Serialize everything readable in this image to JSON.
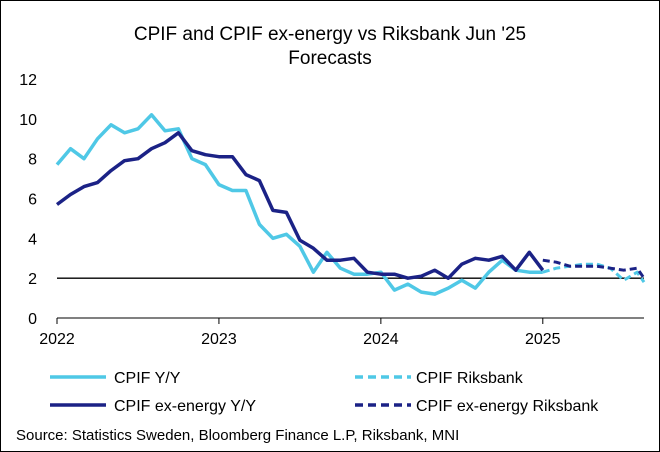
{
  "chart_data": {
    "type": "line",
    "title_line1": "CPIF and CPIF ex-energy vs Riksbank  Jun '25",
    "title_line2": "Forecasts",
    "xlabel": "",
    "ylabel": "",
    "ylim": [
      0,
      12
    ],
    "yticks": [
      "0",
      "2",
      "4",
      "6",
      "8",
      "10",
      "12"
    ],
    "xlim": [
      2022.0,
      2025.625
    ],
    "xticks": [
      {
        "label": "2022",
        "value": 2022.0
      },
      {
        "label": "2023",
        "value": 2023.0
      },
      {
        "label": "2024",
        "value": 2024.0
      },
      {
        "label": "2025",
        "value": 2025.0
      }
    ],
    "reference_line": 2,
    "series": [
      {
        "name": "CPIF Y/Y",
        "color": "#4FC8E6",
        "dash": "solid",
        "x": [
          2022.0,
          2022.0833,
          2022.1667,
          2022.25,
          2022.3333,
          2022.4167,
          2022.5,
          2022.5833,
          2022.6667,
          2022.75,
          2022.8333,
          2022.9167,
          2023.0,
          2023.0833,
          2023.1667,
          2023.25,
          2023.3333,
          2023.4167,
          2023.5,
          2023.5833,
          2023.6667,
          2023.75,
          2023.8333,
          2023.9167,
          2024.0,
          2024.0833,
          2024.1667,
          2024.25,
          2024.3333,
          2024.4167,
          2024.5,
          2024.5833,
          2024.6667,
          2024.75,
          2024.8333,
          2024.9167,
          2025.0
        ],
        "values": [
          7.7,
          8.5,
          8.0,
          9.0,
          9.7,
          9.3,
          9.5,
          10.2,
          9.4,
          9.5,
          8.0,
          7.7,
          6.7,
          6.4,
          6.4,
          4.7,
          4.0,
          4.2,
          3.6,
          2.3,
          3.3,
          2.5,
          2.2,
          2.2,
          2.3,
          1.4,
          1.7,
          1.3,
          1.2,
          1.5,
          1.9,
          1.5,
          2.3,
          2.9,
          2.4,
          2.3,
          2.3
        ]
      },
      {
        "name": "CPIF ex-energy Y/Y",
        "color": "#1B2286",
        "dash": "solid",
        "x": [
          2022.0,
          2022.0833,
          2022.1667,
          2022.25,
          2022.3333,
          2022.4167,
          2022.5,
          2022.5833,
          2022.6667,
          2022.75,
          2022.8333,
          2022.9167,
          2023.0,
          2023.0833,
          2023.1667,
          2023.25,
          2023.3333,
          2023.4167,
          2023.5,
          2023.5833,
          2023.6667,
          2023.75,
          2023.8333,
          2023.9167,
          2024.0,
          2024.0833,
          2024.1667,
          2024.25,
          2024.3333,
          2024.4167,
          2024.5,
          2024.5833,
          2024.6667,
          2024.75,
          2024.8333,
          2024.9167,
          2025.0
        ],
        "values": [
          5.7,
          6.2,
          6.6,
          6.8,
          7.4,
          7.9,
          8.0,
          8.5,
          8.8,
          9.3,
          8.4,
          8.2,
          8.1,
          8.1,
          7.2,
          6.9,
          5.4,
          5.3,
          3.9,
          3.5,
          2.9,
          2.9,
          3.0,
          2.3,
          2.2,
          2.2,
          2.0,
          2.1,
          2.4,
          2.0,
          2.7,
          3.0,
          2.9,
          3.1,
          2.4,
          3.3,
          2.4
        ]
      },
      {
        "name": "CPIF Riksbank",
        "color": "#4FC8E6",
        "dash": "dashed",
        "x": [
          2025.0,
          2025.0833,
          2025.1667,
          2025.25,
          2025.3333,
          2025.4167,
          2025.5,
          2025.5833,
          2025.625
        ],
        "values": [
          2.3,
          2.5,
          2.6,
          2.7,
          2.7,
          2.5,
          1.9,
          2.3,
          1.8
        ]
      },
      {
        "name": "CPIF ex-energy Riksbank",
        "color": "#1B2286",
        "dash": "dashed",
        "x": [
          2025.0,
          2025.0833,
          2025.1667,
          2025.25,
          2025.3333,
          2025.4167,
          2025.5,
          2025.5833,
          2025.625
        ],
        "values": [
          2.9,
          2.8,
          2.6,
          2.6,
          2.6,
          2.5,
          2.4,
          2.5,
          2.0
        ]
      }
    ],
    "legend": [
      {
        "label": "CPIF Y/Y",
        "series": 0
      },
      {
        "label": "CPIF Riksbank",
        "series": 2
      },
      {
        "label": "CPIF ex-energy Y/Y",
        "series": 1
      },
      {
        "label": "CPIF ex-energy Riksbank",
        "series": 3
      }
    ],
    "legend_position": "bottom",
    "source": "Source: Statistics Sweden, Bloomberg Finance L.P, Riksbank, MNI"
  }
}
